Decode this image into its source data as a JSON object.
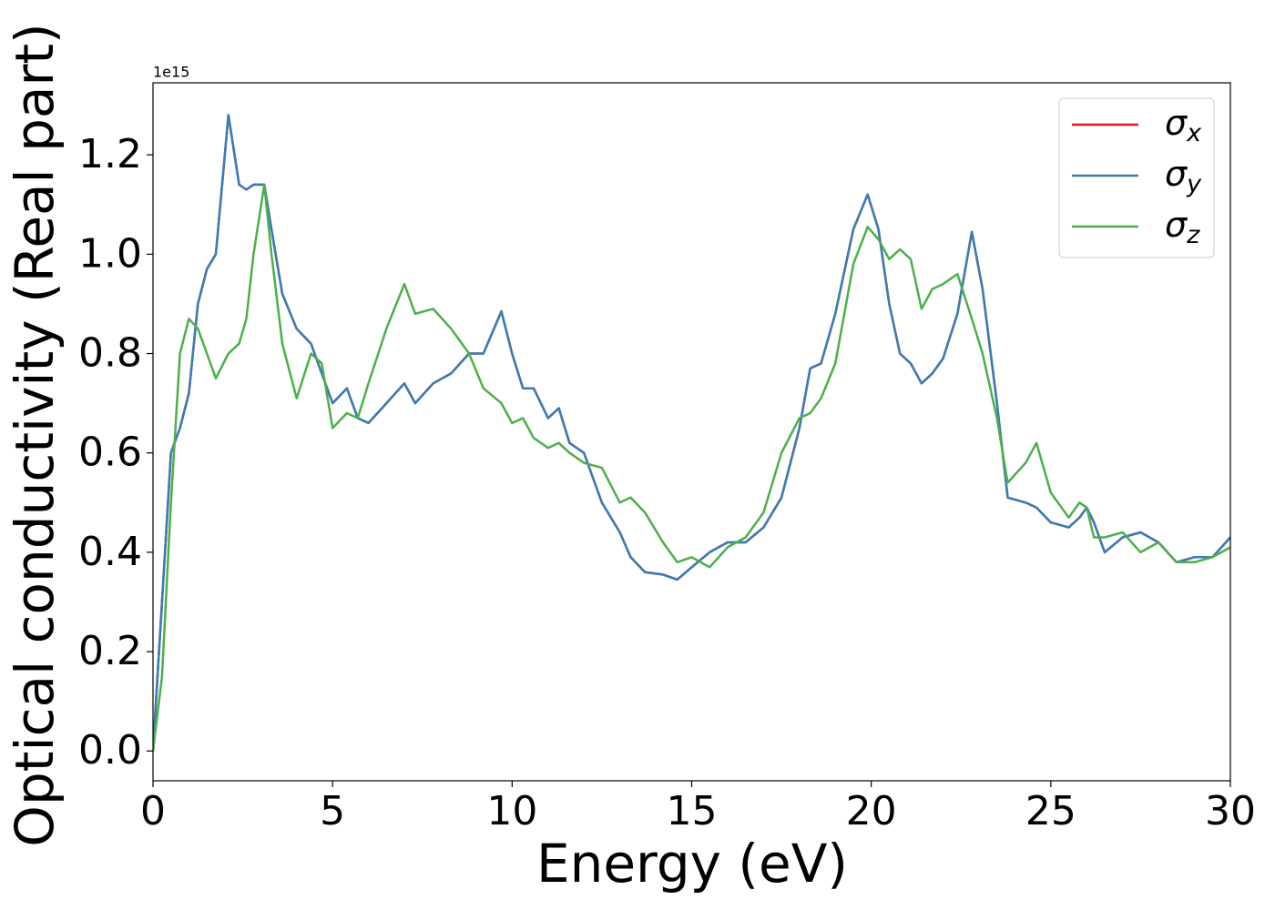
{
  "chart_data": {
    "type": "line",
    "xlabel": "Energy (eV)",
    "ylabel": "Optical conductivity (Real part)",
    "y_offset_text": "1e15",
    "x": [
      0,
      0.25,
      0.5,
      0.75,
      1.0,
      1.25,
      1.5,
      1.75,
      2.1,
      2.4,
      2.6,
      2.8,
      3.1,
      3.3,
      3.6,
      4.0,
      4.4,
      4.7,
      5.0,
      5.4,
      5.7,
      6.0,
      6.5,
      7.0,
      7.3,
      7.8,
      8.3,
      8.8,
      9.2,
      9.7,
      10.0,
      10.3,
      10.6,
      11.0,
      11.3,
      11.6,
      12.0,
      12.5,
      13.0,
      13.3,
      13.7,
      14.2,
      14.6,
      15.0,
      15.5,
      16.0,
      16.5,
      17.0,
      17.5,
      18.0,
      18.3,
      18.6,
      19.0,
      19.5,
      19.9,
      20.2,
      20.5,
      20.8,
      21.1,
      21.4,
      21.7,
      22.0,
      22.4,
      22.8,
      23.1,
      23.5,
      23.8,
      24.3,
      24.6,
      25.0,
      25.5,
      25.8,
      26.0,
      26.2,
      26.5,
      27.0,
      27.5,
      28.0,
      28.5,
      29.0,
      29.5,
      30.0
    ],
    "series": [
      {
        "name": "σx",
        "color": "#e41a1c",
        "values": [
          0,
          0.3,
          0.6,
          0.65,
          0.72,
          0.9,
          0.97,
          1.0,
          1.28,
          1.14,
          1.13,
          1.14,
          1.14,
          1.05,
          0.92,
          0.85,
          0.82,
          0.76,
          0.7,
          0.73,
          0.67,
          0.66,
          0.7,
          0.74,
          0.7,
          0.74,
          0.76,
          0.8,
          0.8,
          0.885,
          0.8,
          0.73,
          0.73,
          0.67,
          0.69,
          0.62,
          0.6,
          0.5,
          0.44,
          0.39,
          0.36,
          0.355,
          0.345,
          0.37,
          0.4,
          0.42,
          0.42,
          0.45,
          0.51,
          0.65,
          0.77,
          0.78,
          0.88,
          1.05,
          1.12,
          1.05,
          0.9,
          0.8,
          0.78,
          0.74,
          0.76,
          0.79,
          0.88,
          1.045,
          0.93,
          0.7,
          0.51,
          0.5,
          0.49,
          0.46,
          0.45,
          0.47,
          0.49,
          0.46,
          0.4,
          0.43,
          0.44,
          0.42,
          0.38,
          0.39,
          0.39,
          0.43
        ]
      },
      {
        "name": "σy",
        "color": "#377eb8",
        "values": [
          0,
          0.3,
          0.6,
          0.65,
          0.72,
          0.9,
          0.97,
          1.0,
          1.28,
          1.14,
          1.13,
          1.14,
          1.14,
          1.05,
          0.92,
          0.85,
          0.82,
          0.76,
          0.7,
          0.73,
          0.67,
          0.66,
          0.7,
          0.74,
          0.7,
          0.74,
          0.76,
          0.8,
          0.8,
          0.885,
          0.8,
          0.73,
          0.73,
          0.67,
          0.69,
          0.62,
          0.6,
          0.5,
          0.44,
          0.39,
          0.36,
          0.355,
          0.345,
          0.37,
          0.4,
          0.42,
          0.42,
          0.45,
          0.51,
          0.65,
          0.77,
          0.78,
          0.88,
          1.05,
          1.12,
          1.05,
          0.9,
          0.8,
          0.78,
          0.74,
          0.76,
          0.79,
          0.88,
          1.045,
          0.93,
          0.7,
          0.51,
          0.5,
          0.49,
          0.46,
          0.45,
          0.47,
          0.49,
          0.46,
          0.4,
          0.43,
          0.44,
          0.42,
          0.38,
          0.39,
          0.39,
          0.43
        ]
      },
      {
        "name": "σz",
        "color": "#4daf4a",
        "values": [
          0,
          0.15,
          0.5,
          0.8,
          0.87,
          0.85,
          0.8,
          0.75,
          0.8,
          0.82,
          0.87,
          1.0,
          1.14,
          1.0,
          0.82,
          0.71,
          0.8,
          0.78,
          0.65,
          0.68,
          0.67,
          0.74,
          0.85,
          0.94,
          0.88,
          0.89,
          0.85,
          0.8,
          0.73,
          0.7,
          0.66,
          0.67,
          0.63,
          0.61,
          0.62,
          0.6,
          0.58,
          0.57,
          0.5,
          0.51,
          0.48,
          0.42,
          0.38,
          0.39,
          0.37,
          0.41,
          0.43,
          0.48,
          0.6,
          0.67,
          0.68,
          0.71,
          0.78,
          0.98,
          1.055,
          1.03,
          0.99,
          1.01,
          0.99,
          0.89,
          0.93,
          0.94,
          0.96,
          0.87,
          0.8,
          0.67,
          0.54,
          0.58,
          0.62,
          0.52,
          0.47,
          0.5,
          0.49,
          0.43,
          0.43,
          0.44,
          0.4,
          0.42,
          0.38,
          0.38,
          0.39,
          0.41
        ]
      }
    ],
    "xlim": [
      0,
      30
    ],
    "xticks": [
      0,
      5,
      10,
      15,
      20,
      25,
      30
    ],
    "ylim": [
      -0.06,
      1.345
    ],
    "yticks": [
      {
        "value": 0,
        "label": "0.0"
      },
      0.2,
      0.4,
      0.6,
      0.8,
      {
        "value": 1,
        "label": "1.0"
      },
      1.2
    ],
    "legend": "upper right",
    "grid": false
  }
}
